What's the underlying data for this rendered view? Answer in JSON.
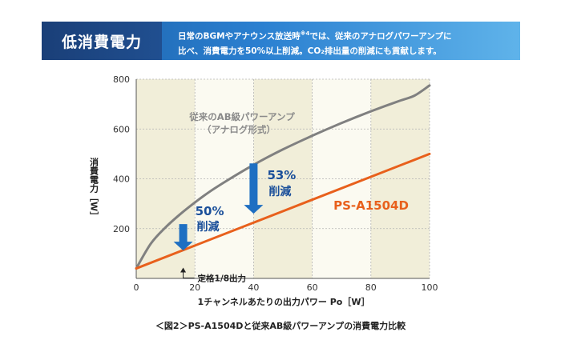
{
  "banner": {
    "title": "低消費電力",
    "line1_pre": "日常のBGMやアナウンス放送時",
    "line1_sup": "※4",
    "line1_post": "では、従来のアナログパワーアンプに",
    "line2": "比べ、消費電力を50%以上削減。CO₂排出量の削減にも貢献します。"
  },
  "chart_data": {
    "type": "line",
    "xlabel": "1チャンネルあたりの出力パワー Po［W］",
    "ylabel": "消費電力［W］",
    "xlim": [
      0,
      100
    ],
    "ylim": [
      0,
      800
    ],
    "xticks": [
      0,
      20,
      40,
      60,
      80,
      100
    ],
    "yticks": [
      200,
      400,
      600,
      800
    ],
    "grid": true,
    "series": [
      {
        "name_lines": [
          "従来のAB級パワーアンプ",
          "（アナログ形式）"
        ],
        "color": "#808080",
        "x": [
          0,
          5,
          10,
          15,
          20,
          25,
          30,
          35,
          40,
          45,
          50,
          55,
          60,
          65,
          70,
          75,
          80,
          85,
          90,
          95,
          100
        ],
        "y": [
          40,
          140,
          205,
          258,
          305,
          348,
          386,
          422,
          456,
          488,
          518,
          546,
          573,
          599,
          624,
          648,
          671,
          693,
          714,
          735,
          775
        ]
      },
      {
        "name": "PS-A1504D",
        "color": "#e8601c",
        "x": [
          0,
          100
        ],
        "y": [
          40,
          500
        ]
      }
    ],
    "annotations": {
      "arrow_50": {
        "x": 16,
        "y_from": 218,
        "y_to": 112,
        "label_pct": "50%",
        "label_word": "削減"
      },
      "arrow_53": {
        "x": 40,
        "y_from": 462,
        "y_to": 260,
        "label_pct": "53%",
        "label_word": "削減"
      },
      "rated": {
        "x": 16,
        "label": "定格1/8出力"
      }
    },
    "caption": "＜図2＞PS-A1504Dと従来AB級パワーアンプの消費電力比較"
  },
  "colors": {
    "band": "#f1eed9",
    "grid": "#b4b4b4",
    "arrow": "#1e6fc2",
    "pct_text": "#1a4f9a"
  }
}
